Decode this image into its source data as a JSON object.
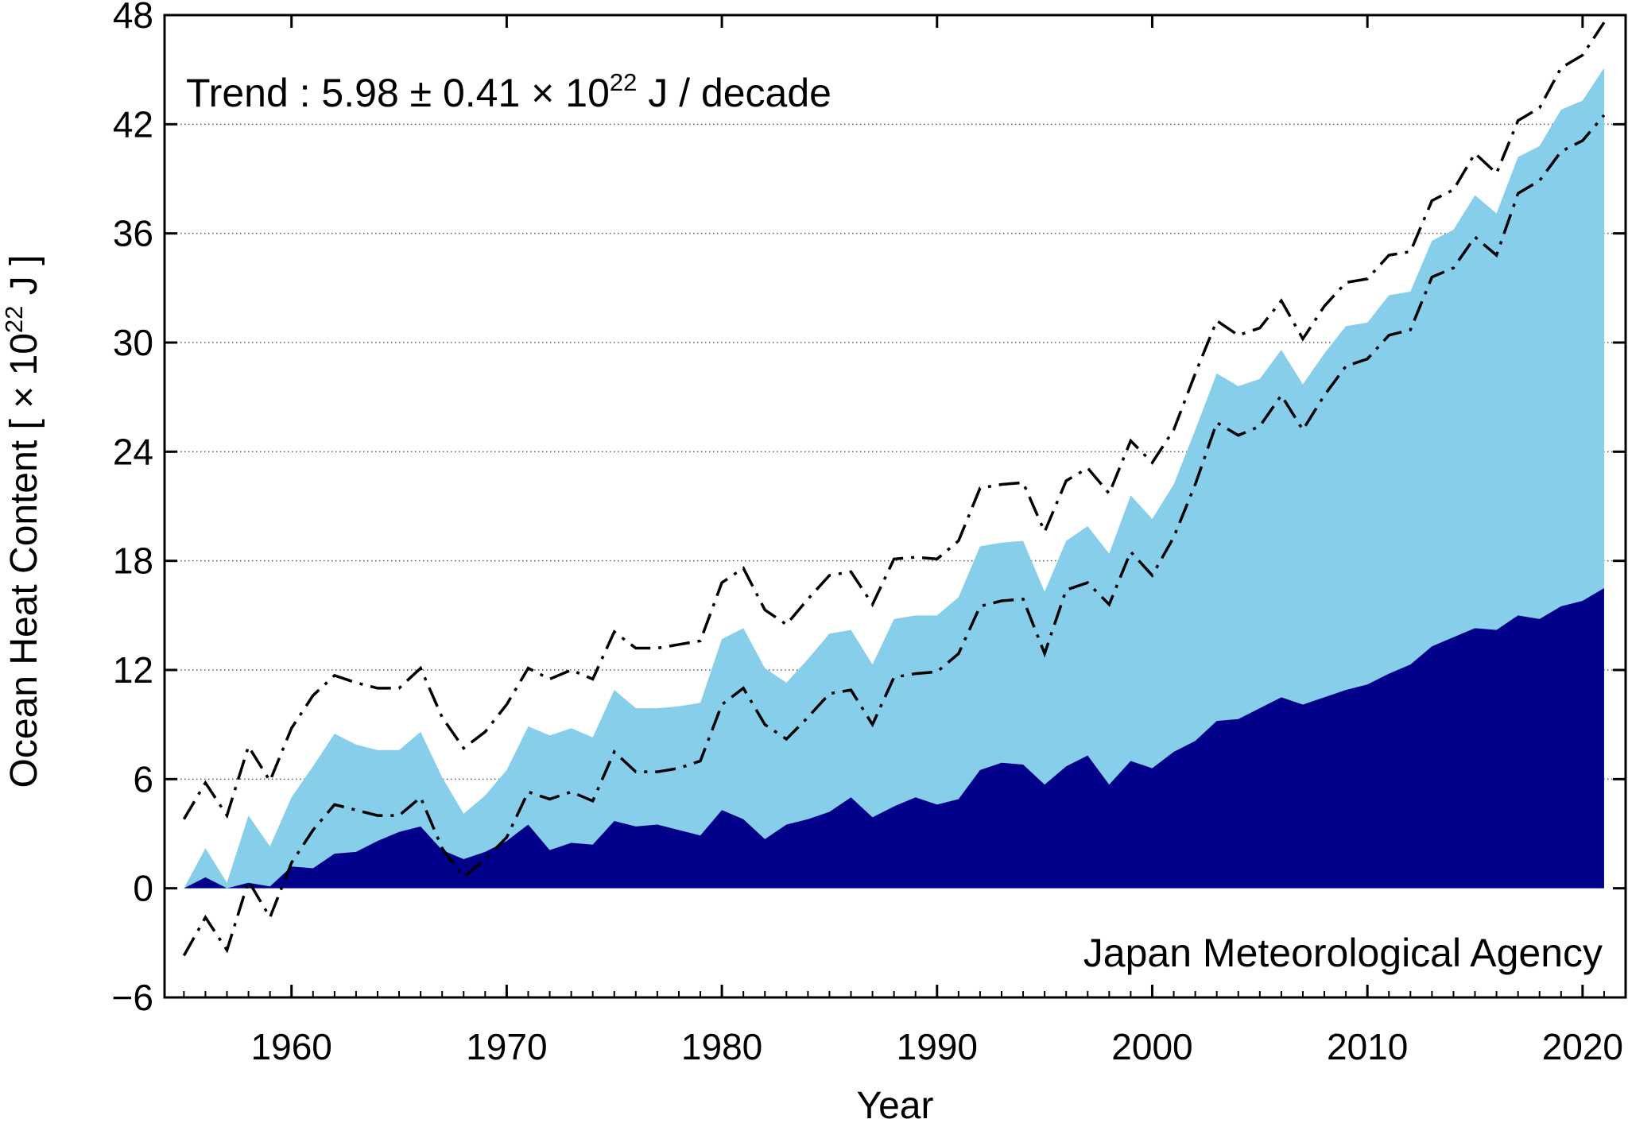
{
  "chart_data": {
    "type": "area",
    "xlabel": "Year",
    "ylabel": "Ocean Heat Content [ × 10",
    "ylabel_exp": "22",
    "ylabel_unit": " J ]",
    "trend_prefix": "Trend :  5.98 ± 0.41 × 10",
    "trend_exp": "22",
    "trend_unit": " J / decade",
    "credit": "Japan Meteorological Agency",
    "xlim": [
      1954.1,
      2022.0
    ],
    "ylim": [
      -6,
      48
    ],
    "xticks": [
      1960,
      1970,
      1980,
      1990,
      2000,
      2010,
      2020
    ],
    "xtick_labels": [
      "1960",
      "1970",
      "1980",
      "1990",
      "2000",
      "2010",
      "2020"
    ],
    "yticks": [
      -6,
      0,
      6,
      12,
      18,
      24,
      30,
      36,
      42,
      48
    ],
    "ytick_labels": [
      "−6",
      "0",
      "6",
      "12",
      "18",
      "24",
      "30",
      "36",
      "42",
      "48"
    ],
    "grid": "horizontal dotted",
    "colors": {
      "upper_layer": "#87ceeb",
      "lower_layer": "#00008b",
      "bounds": "#000000"
    },
    "x": [
      1955,
      1956,
      1957,
      1958,
      1959,
      1960,
      1961,
      1962,
      1963,
      1964,
      1965,
      1966,
      1967,
      1968,
      1969,
      1970,
      1971,
      1972,
      1973,
      1974,
      1975,
      1976,
      1977,
      1978,
      1979,
      1980,
      1981,
      1982,
      1983,
      1984,
      1985,
      1986,
      1987,
      1988,
      1989,
      1990,
      1991,
      1992,
      1993,
      1994,
      1995,
      1996,
      1997,
      1998,
      1999,
      2000,
      2001,
      2002,
      2003,
      2004,
      2005,
      2006,
      2007,
      2008,
      2009,
      2010,
      2011,
      2012,
      2013,
      2014,
      2015,
      2016,
      2017,
      2018,
      2019,
      2020,
      2021
    ],
    "series": [
      {
        "values": [
          0.0,
          2.2,
          0.3,
          4.0,
          2.3,
          5.0,
          6.7,
          8.5,
          7.9,
          7.6,
          7.6,
          8.6,
          6.1,
          4.1,
          5.1,
          6.5,
          8.9,
          8.4,
          8.8,
          8.3,
          10.9,
          9.9,
          9.9,
          10.0,
          10.2,
          13.7,
          14.3,
          12.1,
          11.3,
          12.6,
          14.0,
          14.2,
          12.3,
          14.8,
          15.0,
          15.0,
          16.0,
          18.8,
          19.0,
          19.1,
          16.3,
          19.1,
          19.9,
          18.4,
          21.6,
          20.3,
          22.2,
          25.2,
          28.3,
          27.6,
          28.0,
          29.6,
          27.7,
          29.4,
          30.9,
          31.1,
          32.6,
          32.8,
          35.6,
          36.2,
          38.1,
          37.1,
          40.2,
          40.8,
          42.8,
          43.3,
          45.1
        ]
      },
      {
        "values": [
          0.0,
          0.6,
          0.0,
          0.3,
          0.1,
          1.2,
          1.1,
          1.9,
          2.0,
          2.6,
          3.1,
          3.4,
          2.1,
          1.6,
          2.0,
          2.6,
          3.5,
          2.1,
          2.5,
          2.4,
          3.7,
          3.4,
          3.5,
          3.2,
          2.9,
          4.3,
          3.8,
          2.7,
          3.5,
          3.8,
          4.2,
          5.0,
          3.9,
          4.5,
          5.0,
          4.6,
          4.9,
          6.5,
          6.9,
          6.8,
          5.7,
          6.7,
          7.3,
          5.7,
          7.0,
          6.6,
          7.5,
          8.1,
          9.2,
          9.3,
          9.9,
          10.5,
          10.1,
          10.5,
          10.9,
          11.2,
          11.8,
          12.3,
          13.3,
          13.8,
          14.3,
          14.2,
          15.0,
          14.8,
          15.5,
          15.8,
          16.5
        ]
      },
      {
        "values": [
          3.8,
          5.8,
          4.0,
          7.8,
          5.9,
          8.8,
          10.6,
          11.7,
          11.3,
          11.0,
          11.0,
          12.1,
          9.4,
          7.7,
          8.6,
          10.1,
          12.1,
          11.5,
          12.0,
          11.5,
          14.1,
          13.2,
          13.2,
          13.4,
          13.6,
          16.8,
          17.6,
          15.3,
          14.5,
          15.9,
          17.2,
          17.4,
          15.6,
          18.1,
          18.2,
          18.1,
          19.1,
          22.0,
          22.2,
          22.3,
          19.6,
          22.4,
          23.1,
          21.7,
          24.6,
          23.4,
          25.2,
          28.3,
          31.2,
          30.4,
          30.8,
          32.3,
          30.2,
          32.0,
          33.3,
          33.5,
          34.8,
          35.0,
          37.8,
          38.4,
          40.4,
          39.3,
          42.2,
          42.9,
          45.1,
          45.8,
          47.6
        ]
      },
      {
        "values": [
          -3.7,
          -1.6,
          -3.4,
          0.4,
          -1.6,
          1.4,
          3.2,
          4.6,
          4.3,
          4.0,
          4.0,
          5.0,
          2.2,
          0.6,
          1.6,
          2.8,
          5.3,
          4.9,
          5.3,
          4.8,
          7.5,
          6.4,
          6.4,
          6.6,
          7.0,
          10.1,
          11.0,
          9.0,
          8.2,
          9.4,
          10.7,
          10.9,
          9.0,
          11.6,
          11.8,
          11.9,
          12.9,
          15.5,
          15.8,
          15.9,
          12.9,
          16.4,
          16.8,
          15.6,
          18.5,
          17.2,
          19.3,
          22.2,
          25.6,
          24.9,
          25.4,
          27.1,
          25.2,
          27.1,
          28.7,
          29.1,
          30.4,
          30.7,
          33.6,
          34.1,
          35.8,
          34.8,
          38.2,
          38.9,
          40.5,
          41.1,
          42.5
        ]
      }
    ]
  }
}
